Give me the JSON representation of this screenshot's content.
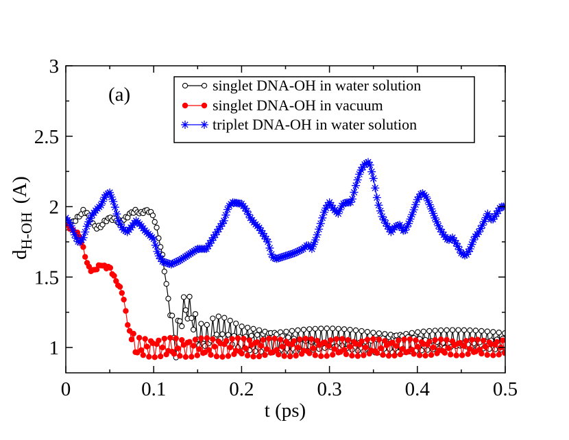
{
  "chart_data": {
    "type": "line",
    "panel_label": "(a)",
    "xlabel": "t (ps)",
    "ylabel": {
      "main": "d",
      "subscript": "H-OH",
      "unit": "(A)"
    },
    "xlim": [
      0,
      0.5
    ],
    "ylim": [
      0.82,
      3
    ],
    "xticks": [
      0,
      0.1,
      0.2,
      0.3,
      0.4,
      0.5
    ],
    "xtick_labels": [
      "0",
      "0.1",
      "0.2",
      "0.3",
      "0.4",
      "0.5"
    ],
    "yticks": [
      1,
      1.5,
      2,
      2.5,
      3
    ],
    "ytick_labels": [
      "1",
      "1.5",
      "2",
      "2.5",
      "3"
    ],
    "grid": false,
    "legend_position": "top-right",
    "series": [
      {
        "name": "singlet DNA-OH in water solution",
        "color": "#000000",
        "marker": "open-circle",
        "anchors": [
          [
            0,
            1.85
          ],
          [
            0.005,
            1.88
          ],
          [
            0.01,
            1.9
          ],
          [
            0.015,
            1.93
          ],
          [
            0.02,
            1.97
          ],
          [
            0.025,
            1.95
          ],
          [
            0.03,
            1.88
          ],
          [
            0.035,
            1.85
          ],
          [
            0.04,
            1.86
          ],
          [
            0.045,
            1.9
          ],
          [
            0.05,
            1.92
          ],
          [
            0.055,
            1.91
          ],
          [
            0.06,
            1.89
          ],
          [
            0.065,
            1.9
          ],
          [
            0.07,
            1.93
          ],
          [
            0.075,
            1.96
          ],
          [
            0.08,
            1.97
          ],
          [
            0.085,
            1.95
          ],
          [
            0.09,
            1.97
          ],
          [
            0.095,
            1.97
          ],
          [
            0.1,
            1.93
          ],
          [
            0.105,
            1.8
          ],
          [
            0.11,
            1.65
          ],
          [
            0.115,
            1.42
          ],
          [
            0.12,
            1.18
          ],
          [
            0.125,
            1.0
          ],
          [
            0.13,
            1.2
          ],
          [
            0.135,
            1.28
          ],
          [
            0.14,
            1.28
          ],
          [
            0.145,
            1.2
          ],
          [
            0.15,
            1.08
          ],
          [
            0.16,
            1.06
          ],
          [
            0.17,
            1.13
          ],
          [
            0.18,
            1.12
          ],
          [
            0.2,
            1.07
          ],
          [
            0.25,
            1.05
          ],
          [
            0.3,
            1.05
          ],
          [
            0.35,
            1.04
          ],
          [
            0.4,
            1.05
          ],
          [
            0.45,
            1.05
          ],
          [
            0.5,
            1.05
          ]
        ],
        "osc_start": 0.12,
        "osc_amp_start": 0.1,
        "osc_amp_end": 0.07,
        "osc_period": 0.0065,
        "osc_center_end": 1.0,
        "step": 0.0022
      },
      {
        "name": "singlet DNA-OH in vacuum",
        "color": "#ff0000",
        "marker": "filled-circle",
        "anchors": [
          [
            0,
            1.87
          ],
          [
            0.005,
            1.85
          ],
          [
            0.01,
            1.82
          ],
          [
            0.015,
            1.8
          ],
          [
            0.02,
            1.7
          ],
          [
            0.025,
            1.58
          ],
          [
            0.03,
            1.54
          ],
          [
            0.035,
            1.56
          ],
          [
            0.04,
            1.59
          ],
          [
            0.045,
            1.57
          ],
          [
            0.05,
            1.57
          ],
          [
            0.055,
            1.5
          ],
          [
            0.06,
            1.44
          ],
          [
            0.065,
            1.38
          ],
          [
            0.07,
            1.18
          ],
          [
            0.075,
            1.05
          ],
          [
            0.08,
            1.0
          ],
          [
            0.1,
            1.0
          ],
          [
            0.15,
            1.0
          ],
          [
            0.2,
            1.0
          ],
          [
            0.3,
            1.0
          ],
          [
            0.4,
            1.0
          ],
          [
            0.5,
            1.0
          ]
        ],
        "osc_start": 0.075,
        "osc_amp_start": 0.07,
        "osc_amp_end": 0.055,
        "osc_period": 0.007,
        "osc_center_end": 1.0,
        "step": 0.0022
      },
      {
        "name": "triplet DNA-OH in water solution",
        "color": "#0000ff",
        "marker": "star",
        "anchors": [
          [
            0,
            1.92
          ],
          [
            0.005,
            1.88
          ],
          [
            0.01,
            1.8
          ],
          [
            0.015,
            1.74
          ],
          [
            0.02,
            1.78
          ],
          [
            0.025,
            1.88
          ],
          [
            0.03,
            1.94
          ],
          [
            0.035,
            1.98
          ],
          [
            0.04,
            2.01
          ],
          [
            0.045,
            2.08
          ],
          [
            0.05,
            2.1
          ],
          [
            0.055,
            2.02
          ],
          [
            0.06,
            1.9
          ],
          [
            0.065,
            1.84
          ],
          [
            0.07,
            1.82
          ],
          [
            0.075,
            1.86
          ],
          [
            0.08,
            1.9
          ],
          [
            0.085,
            1.87
          ],
          [
            0.09,
            1.83
          ],
          [
            0.1,
            1.77
          ],
          [
            0.105,
            1.66
          ],
          [
            0.11,
            1.61
          ],
          [
            0.12,
            1.59
          ],
          [
            0.13,
            1.62
          ],
          [
            0.14,
            1.66
          ],
          [
            0.15,
            1.7
          ],
          [
            0.16,
            1.7
          ],
          [
            0.17,
            1.8
          ],
          [
            0.18,
            1.9
          ],
          [
            0.185,
            2.0
          ],
          [
            0.19,
            2.03
          ],
          [
            0.2,
            2.02
          ],
          [
            0.205,
            1.98
          ],
          [
            0.21,
            1.92
          ],
          [
            0.215,
            1.88
          ],
          [
            0.22,
            1.85
          ],
          [
            0.23,
            1.75
          ],
          [
            0.235,
            1.64
          ],
          [
            0.24,
            1.63
          ],
          [
            0.25,
            1.65
          ],
          [
            0.26,
            1.67
          ],
          [
            0.27,
            1.7
          ],
          [
            0.275,
            1.73
          ],
          [
            0.28,
            1.7
          ],
          [
            0.285,
            1.78
          ],
          [
            0.29,
            1.88
          ],
          [
            0.295,
            1.98
          ],
          [
            0.3,
            2.03
          ],
          [
            0.305,
            1.98
          ],
          [
            0.31,
            1.95
          ],
          [
            0.315,
            2.02
          ],
          [
            0.32,
            2.03
          ],
          [
            0.325,
            2.03
          ],
          [
            0.33,
            2.15
          ],
          [
            0.335,
            2.25
          ],
          [
            0.34,
            2.3
          ],
          [
            0.345,
            2.32
          ],
          [
            0.35,
            2.2
          ],
          [
            0.355,
            2.03
          ],
          [
            0.36,
            1.93
          ],
          [
            0.365,
            1.87
          ],
          [
            0.37,
            1.82
          ],
          [
            0.375,
            1.86
          ],
          [
            0.38,
            1.87
          ],
          [
            0.385,
            1.82
          ],
          [
            0.39,
            1.88
          ],
          [
            0.395,
            1.96
          ],
          [
            0.4,
            2.05
          ],
          [
            0.405,
            2.1
          ],
          [
            0.41,
            2.07
          ],
          [
            0.415,
            2.0
          ],
          [
            0.42,
            1.92
          ],
          [
            0.425,
            1.85
          ],
          [
            0.43,
            1.8
          ],
          [
            0.435,
            1.76
          ],
          [
            0.44,
            1.78
          ],
          [
            0.445,
            1.73
          ],
          [
            0.45,
            1.67
          ],
          [
            0.455,
            1.65
          ],
          [
            0.46,
            1.7
          ],
          [
            0.465,
            1.78
          ],
          [
            0.47,
            1.82
          ],
          [
            0.475,
            1.88
          ],
          [
            0.48,
            1.95
          ],
          [
            0.485,
            1.9
          ],
          [
            0.49,
            1.95
          ],
          [
            0.495,
            2.0
          ],
          [
            0.5,
            2.0
          ]
        ],
        "osc_start": 1,
        "osc_amp_start": 0,
        "osc_amp_end": 0,
        "osc_period": 0.01,
        "osc_center_end": 2.0,
        "step": 0.002
      }
    ]
  }
}
